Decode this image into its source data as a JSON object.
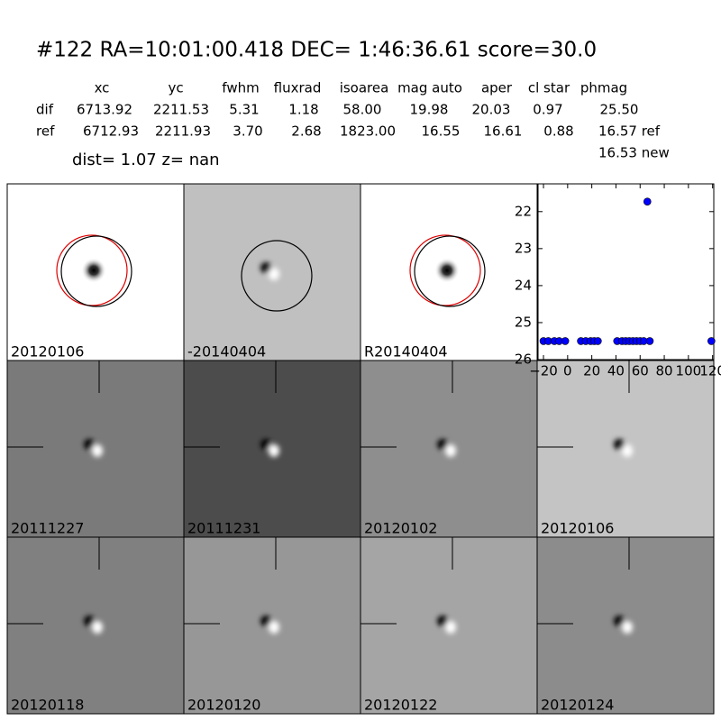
{
  "header": {
    "title": "#122   RA=10:01:00.418 DEC= 1:46:36.61      score=30.0",
    "columns": [
      "xc",
      "yc",
      "fwhm",
      "fluxrad",
      "isoarea",
      "mag auto",
      "aper",
      "cl star",
      "phmag"
    ],
    "rows": [
      [
        "dif",
        "6713.92",
        "2211.53",
        "5.31",
        "1.18",
        "58.00",
        "19.98",
        "20.03",
        "0.97",
        "25.50"
      ],
      [
        "ref",
        "6712.93",
        "2211.93",
        "3.70",
        "2.68",
        "1823.00",
        "16.55",
        "16.61",
        "0.88",
        "16.57 ref"
      ]
    ],
    "extra": "16.53 new",
    "dist": "dist=  1.07      z=   nan"
  },
  "panels": [
    {
      "label": "20120106"
    },
    {
      "label": "-20140404"
    },
    {
      "label": "R20140404"
    },
    {
      "label": "20111227"
    },
    {
      "label": "20111231"
    },
    {
      "label": "20120102"
    },
    {
      "label": "20120106",
      "color": "#ff0000"
    },
    {
      "label": "20120118"
    },
    {
      "label": "20120120"
    },
    {
      "label": "20120122"
    },
    {
      "label": "20120124"
    }
  ],
  "chart_data": {
    "type": "scatter",
    "x": [
      -20,
      -16,
      -11,
      -7,
      -2,
      11,
      15,
      19,
      22,
      25,
      41,
      45,
      48,
      51,
      54,
      57,
      60,
      63,
      66,
      68,
      119
    ],
    "values": [
      25.5,
      25.5,
      25.5,
      25.5,
      25.5,
      25.5,
      25.5,
      25.5,
      25.5,
      25.5,
      25.5,
      25.5,
      25.5,
      25.5,
      25.5,
      25.5,
      25.5,
      25.5,
      21.73,
      25.5,
      25.5
    ],
    "color": "#0000ff",
    "xlim": [
      -24.5,
      121
    ],
    "xticks": [
      {
        "value": -20,
        "label": "−20"
      },
      0,
      20,
      40,
      60,
      80,
      100,
      120
    ],
    "ylim": [
      26,
      21.25
    ],
    "yticks": [
      22,
      23,
      24,
      25,
      26
    ]
  }
}
